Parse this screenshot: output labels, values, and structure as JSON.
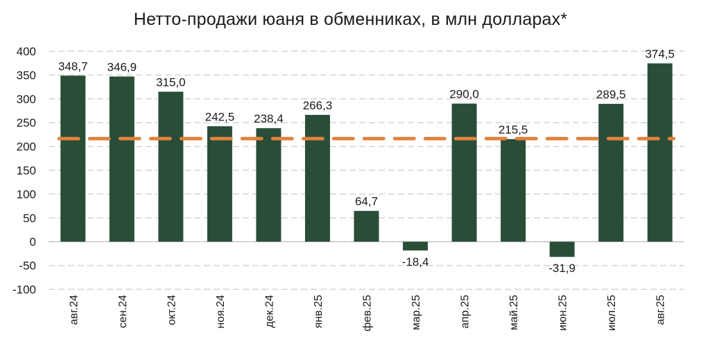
{
  "chart_data": {
    "type": "bar",
    "title": "Нетто-продажи юаня в обменниках, в млн долларах*",
    "categories": [
      "авг.24",
      "сен.24",
      "окт.24",
      "ноя.24",
      "дек.24",
      "янв.25",
      "фев.25",
      "мар.25",
      "апр.25",
      "май.25",
      "июн.25",
      "июл.25",
      "авг.25"
    ],
    "values": [
      348.7,
      346.9,
      315.0,
      242.5,
      238.4,
      266.3,
      64.7,
      -18.4,
      290.0,
      215.5,
      -31.9,
      289.5,
      374.5
    ],
    "data_labels": [
      "348,7",
      "346,9",
      "315,0",
      "242,5",
      "238,4",
      "266,3",
      "64,7",
      "-18,4",
      "290,0",
      "215,5",
      "-31,9",
      "289,5",
      "374,5"
    ],
    "average_line": {
      "value": 216.5,
      "style": "dashed"
    },
    "ylim": [
      -100,
      400
    ],
    "yticks": [
      400,
      350,
      300,
      250,
      200,
      150,
      100,
      50,
      0,
      -50,
      -100
    ],
    "xlabel": "",
    "ylabel": "",
    "grid": true,
    "legend": "none",
    "colors": {
      "bar": "#2a4d38",
      "average_line": "#e0823d",
      "grid": "#d4d4d4",
      "axis": "#bdbdbd"
    }
  }
}
